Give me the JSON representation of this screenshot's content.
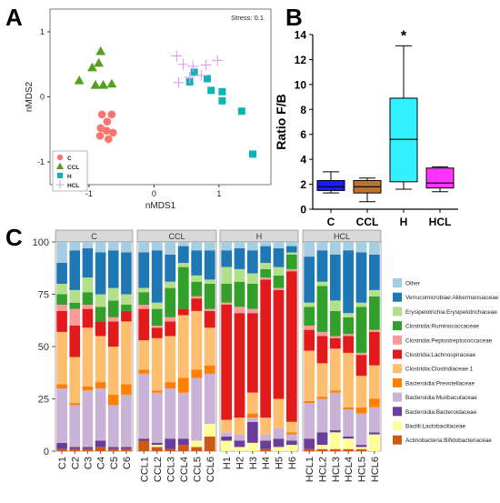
{
  "panel_labels": [
    "A",
    "B",
    "C"
  ],
  "colors": {
    "C": "#f8766d",
    "CCL": "#53a020",
    "H": "#0fb3b5",
    "HCL": "#e39af2",
    "box_C": "#1a1aff",
    "box_CCL": "#b9742f",
    "box_H": "#33f0ff",
    "box_HCL": "#ff33ff"
  },
  "chart_data": [
    {
      "id": "A",
      "type": "scatter",
      "title": "",
      "xlabel": "nMDS1",
      "ylabel": "nMDS2",
      "annotation": "Stress: 0.1",
      "xlim": [
        -1.6,
        1.8
      ],
      "ylim": [
        -1.35,
        1.35
      ],
      "xticks": [
        -1,
        0,
        1
      ],
      "yticks": [
        -1,
        0,
        1
      ],
      "legend_position": "bottom-left",
      "series": [
        {
          "name": "C",
          "marker": "circle",
          "points": [
            [
              -0.8,
              -0.27
            ],
            [
              -0.65,
              -0.27
            ],
            [
              -0.72,
              -0.38
            ],
            [
              -0.82,
              -0.48
            ],
            [
              -0.73,
              -0.52
            ],
            [
              -0.63,
              -0.55
            ],
            [
              -0.83,
              -0.6
            ],
            [
              -0.7,
              -0.65
            ]
          ]
        },
        {
          "name": "CCL",
          "marker": "triangle",
          "points": [
            [
              -1.15,
              0.25
            ],
            [
              -0.95,
              0.45
            ],
            [
              -0.82,
              0.7
            ],
            [
              -0.9,
              0.18
            ],
            [
              -0.78,
              0.18
            ],
            [
              -0.65,
              0.2
            ],
            [
              -0.85,
              0.52
            ]
          ]
        },
        {
          "name": "H",
          "marker": "square",
          "points": [
            [
              0.62,
              0.38
            ],
            [
              0.55,
              0.23
            ],
            [
              0.82,
              0.28
            ],
            [
              0.88,
              0.1
            ],
            [
              1.05,
              0.08
            ],
            [
              1.05,
              -0.06
            ],
            [
              1.35,
              -0.22
            ],
            [
              1.52,
              -0.88
            ]
          ]
        },
        {
          "name": "HCL",
          "marker": "plus",
          "points": [
            [
              0.35,
              0.63
            ],
            [
              0.45,
              0.5
            ],
            [
              0.6,
              0.47
            ],
            [
              0.8,
              0.49
            ],
            [
              0.98,
              0.56
            ],
            [
              0.55,
              0.3
            ],
            [
              0.38,
              0.22
            ],
            [
              0.73,
              0.33
            ]
          ]
        }
      ]
    },
    {
      "id": "B",
      "type": "box",
      "title": "",
      "xlabel": "",
      "ylabel": "Ratio F/B",
      "ylim": [
        0,
        14
      ],
      "yticks": [
        0,
        2,
        4,
        6,
        8,
        10,
        12,
        14
      ],
      "categories": [
        "C",
        "CCL",
        "H",
        "HCL"
      ],
      "boxes": [
        {
          "name": "C",
          "min": 1.3,
          "q1": 1.5,
          "median": 1.8,
          "q3": 2.3,
          "max": 3.0,
          "annotation": ""
        },
        {
          "name": "CCL",
          "min": 0.6,
          "q1": 1.3,
          "median": 1.8,
          "q3": 2.3,
          "max": 2.5,
          "annotation": ""
        },
        {
          "name": "H",
          "min": 1.6,
          "q1": 2.2,
          "median": 5.6,
          "q3": 8.9,
          "max": 13.1,
          "annotation": "*"
        },
        {
          "name": "HCL",
          "min": 1.4,
          "q1": 1.7,
          "median": 2.1,
          "q3": 3.3,
          "max": 3.4,
          "annotation": ""
        }
      ]
    },
    {
      "id": "C",
      "type": "bar",
      "stacked": true,
      "title": "",
      "xlabel": "",
      "ylabel": "",
      "ylim": [
        0,
        100
      ],
      "yticks": [
        0,
        25,
        50,
        75,
        100
      ],
      "facets": [
        "C",
        "CCL",
        "H",
        "HCL"
      ],
      "categories": [
        "C1",
        "C2",
        "C3",
        "C4",
        "C5",
        "C6",
        "CCL1",
        "CCL2",
        "CCL3",
        "CCL4",
        "CCL5",
        "CCL6",
        "H1",
        "H2",
        "H3",
        "H4",
        "H5",
        "H6",
        "HCL1",
        "HCL2",
        "HCL3",
        "HCL4",
        "HCL5",
        "HCL6"
      ],
      "legend_position": "right",
      "legend_order": [
        "Other",
        "Verrucomicrobiae:Akkermansiaceae",
        "Erysipelotrichia:Erysipelotrichaceae",
        "Clostridia:Ruminococcaceae",
        "Clostridia:Peptostreptococcaceae",
        "Clostridia:Lachnospiraceae",
        "Clostridia:Clostridiaceae 1",
        "Bacteroidia:Prevotellaceae",
        "Bacteroidia:Muribaculaceae",
        "Bacteroidia:Bacteroidaceae",
        "Bacilli:Lactobacillaceae",
        "Actinobacteria:Bifidobacteriaceae"
      ],
      "series": [
        {
          "name": "Actinobacteria:Bifidobacteriaceae",
          "color": "#cc5a16",
          "values": [
            1,
            1,
            1,
            2,
            1,
            1,
            5,
            2,
            1,
            3,
            2,
            7,
            0,
            0,
            0,
            1,
            0,
            0,
            1,
            1,
            1,
            1,
            1,
            0
          ]
        },
        {
          "name": "Bacilli:Lactobacillaceae",
          "color": "#ffff99",
          "values": [
            0,
            0,
            0,
            0,
            0,
            0,
            0,
            1,
            0,
            0,
            3,
            6,
            5,
            2,
            4,
            0,
            2,
            3,
            0,
            2,
            8,
            5,
            1,
            8
          ]
        },
        {
          "name": "Bacteroidia:Bacteroidaceae",
          "color": "#6a3d9a",
          "values": [
            3,
            1,
            1,
            3,
            1,
            1,
            1,
            1,
            5,
            3,
            0,
            0,
            2,
            3,
            10,
            4,
            4,
            2,
            5,
            6,
            1,
            1,
            1,
            1
          ]
        },
        {
          "name": "Bacteroidia:Muribaculaceae",
          "color": "#cab2d6",
          "values": [
            26,
            20,
            27,
            25,
            20,
            25,
            31,
            24,
            24,
            22,
            30,
            24,
            2,
            3,
            2,
            3,
            5,
            3,
            17,
            16,
            18,
            13,
            15,
            12
          ]
        },
        {
          "name": "Bacteroidia:Prevotellaceae",
          "color": "#ff7f00",
          "values": [
            2,
            1,
            2,
            3,
            5,
            5,
            2,
            1,
            3,
            7,
            4,
            4,
            0,
            0,
            2,
            0,
            0,
            1,
            1,
            1,
            1,
            1,
            3,
            4
          ]
        },
        {
          "name": "Clostridia:Clostridiaceae 1",
          "color": "#fdbf6f",
          "values": [
            25,
            22,
            28,
            22,
            23,
            30,
            14,
            25,
            22,
            30,
            28,
            18,
            6,
            8,
            10,
            8,
            14,
            5,
            24,
            16,
            20,
            26,
            15,
            16
          ]
        },
        {
          "name": "Clostridia:Lachnospiraceae",
          "color": "#e31a1c",
          "values": [
            10,
            15,
            9,
            7,
            12,
            5,
            15,
            5,
            7,
            3,
            6,
            8,
            55,
            50,
            38,
            66,
            52,
            72,
            10,
            13,
            5,
            8,
            10,
            16
          ]
        },
        {
          "name": "Clostridia:Peptostreptococcaceae",
          "color": "#fb9a99",
          "values": [
            3,
            8,
            2,
            0,
            2,
            0,
            2,
            1,
            2,
            0,
            1,
            1,
            1,
            3,
            2,
            1,
            1,
            1,
            2,
            2,
            1,
            1,
            1,
            1
          ]
        },
        {
          "name": "Clostridia:Ruminococcaceae",
          "color": "#33a02c",
          "values": [
            5,
            3,
            6,
            7,
            8,
            3,
            6,
            8,
            14,
            20,
            7,
            12,
            9,
            12,
            12,
            4,
            6,
            7,
            9,
            22,
            12,
            8,
            22,
            16
          ]
        },
        {
          "name": "Erysipelotrichia:Erysipelotrichaceae",
          "color": "#b2df8a",
          "values": [
            5,
            6,
            7,
            6,
            6,
            5,
            2,
            3,
            3,
            2,
            3,
            2,
            8,
            6,
            5,
            3,
            4,
            1,
            2,
            2,
            5,
            2,
            2,
            3
          ]
        },
        {
          "name": "Verrucomicrobiae:Akkermansiaceae",
          "color": "#1f78b4",
          "values": [
            10,
            19,
            14,
            20,
            18,
            20,
            17,
            25,
            13,
            8,
            12,
            14,
            8,
            10,
            11,
            8,
            9,
            3,
            22,
            15,
            22,
            30,
            24,
            17
          ]
        },
        {
          "name": "Other",
          "color": "#a6cee3",
          "values": [
            10,
            4,
            3,
            5,
            4,
            5,
            5,
            4,
            6,
            2,
            4,
            4,
            4,
            3,
            4,
            2,
            3,
            2,
            7,
            4,
            6,
            4,
            5,
            6
          ]
        }
      ]
    }
  ]
}
